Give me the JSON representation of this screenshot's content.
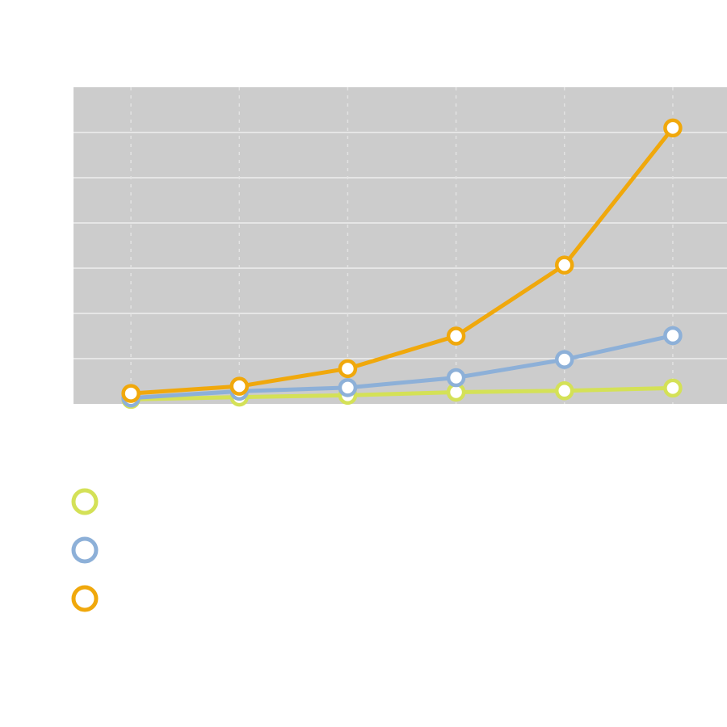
{
  "chart_data": {
    "type": "line",
    "title": "",
    "xlabel": "",
    "ylabel": "",
    "x": [
      1,
      2,
      3,
      4,
      5,
      6
    ],
    "xlim": [
      0.47,
      6.5
    ],
    "ylim": [
      0,
      70
    ],
    "grid": true,
    "legend_position": "bottom-left",
    "background": "#cccccc",
    "series": [
      {
        "color": "#d4e157",
        "values": [
          1.0,
          1.5,
          1.9,
          2.6,
          2.9,
          3.5
        ]
      },
      {
        "color": "#8db0d8",
        "values": [
          1.3,
          2.8,
          3.6,
          5.8,
          9.8,
          15.1
        ]
      },
      {
        "color": "#f0a80c",
        "values": [
          2.3,
          3.9,
          7.8,
          15.0,
          30.7,
          61.0
        ]
      }
    ]
  }
}
